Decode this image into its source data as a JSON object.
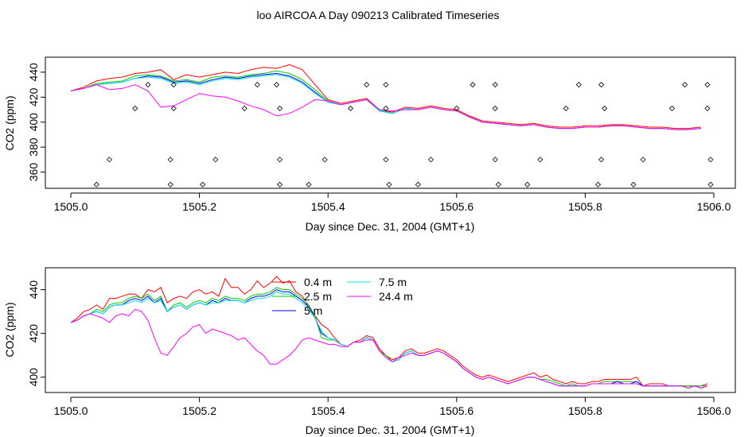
{
  "title": "loo AIRCOA A  Day 090213  Calibrated Timeseries",
  "chart_data": [
    {
      "type": "line",
      "panel": "top",
      "xlabel": "Day since Dec. 31, 2004 (GMT+1)",
      "ylabel": "CO2 (ppm)",
      "xlim": [
        1505.0,
        1506.0
      ],
      "ylim": [
        347,
        452
      ],
      "xticks": [
        "1505.0",
        "1505.2",
        "1505.4",
        "1505.6",
        "1505.8",
        "1506.0"
      ],
      "yticks": [
        "360",
        "380",
        "400",
        "420",
        "440"
      ],
      "x": [
        1505.0,
        1505.02,
        1505.04,
        1505.06,
        1505.08,
        1505.1,
        1505.12,
        1505.14,
        1505.16,
        1505.18,
        1505.2,
        1505.22,
        1505.24,
        1505.26,
        1505.28,
        1505.3,
        1505.32,
        1505.34,
        1505.36,
        1505.38,
        1505.4,
        1505.42,
        1505.44,
        1505.46,
        1505.48,
        1505.5,
        1505.52,
        1505.54,
        1505.56,
        1505.58,
        1505.6,
        1505.62,
        1505.64,
        1505.66,
        1505.68,
        1505.7,
        1505.72,
        1505.74,
        1505.76,
        1505.78,
        1505.8,
        1505.82,
        1505.84,
        1505.86,
        1505.88,
        1505.9,
        1505.92,
        1505.94,
        1505.96,
        1505.98
      ],
      "series": [
        {
          "color": "#ff0000",
          "values": [
            425,
            428,
            433,
            435,
            436,
            439,
            440,
            442,
            434,
            438,
            436,
            438,
            440,
            439,
            442,
            444,
            443,
            446,
            442,
            430,
            418,
            415,
            417,
            419,
            410,
            408,
            412,
            411,
            413,
            411,
            410,
            405,
            401,
            400,
            399,
            398,
            399,
            397,
            396,
            396,
            397,
            397,
            398,
            398,
            397,
            396,
            396,
            395,
            395,
            396
          ]
        },
        {
          "color": "#00cc00",
          "values": [
            425,
            427,
            431,
            432,
            433,
            437,
            438,
            437,
            433,
            434,
            432,
            436,
            437,
            436,
            438,
            439,
            441,
            439,
            434,
            426,
            417,
            414,
            416,
            418,
            410,
            407,
            411,
            410,
            412,
            410,
            409,
            404,
            400,
            399,
            398,
            397,
            398,
            396,
            395,
            395,
            396,
            396,
            397,
            397,
            396,
            395,
            395,
            394,
            394,
            395
          ]
        },
        {
          "color": "#0000ff",
          "values": [
            425,
            427,
            430,
            431,
            432,
            435,
            437,
            436,
            432,
            433,
            431,
            434,
            436,
            435,
            437,
            438,
            439,
            437,
            432,
            424,
            416,
            414,
            416,
            418,
            409,
            407,
            411,
            410,
            412,
            410,
            409,
            404,
            400,
            399,
            398,
            397,
            398,
            396,
            395,
            395,
            396,
            396,
            397,
            397,
            396,
            395,
            395,
            394,
            394,
            395
          ]
        },
        {
          "color": "#00e5e5",
          "values": [
            425,
            427,
            430,
            431,
            432,
            435,
            436,
            435,
            431,
            432,
            430,
            433,
            435,
            434,
            436,
            437,
            438,
            436,
            431,
            423,
            416,
            414,
            416,
            418,
            409,
            407,
            411,
            410,
            412,
            410,
            409,
            404,
            400,
            399,
            398,
            397,
            398,
            396,
            395,
            395,
            396,
            396,
            397,
            397,
            396,
            395,
            395,
            394,
            394,
            395
          ]
        },
        {
          "color": "#ff00ff",
          "values": [
            425,
            427,
            430,
            426,
            427,
            430,
            425,
            412,
            413,
            418,
            423,
            421,
            420,
            417,
            413,
            410,
            405,
            407,
            412,
            418,
            417,
            414,
            416,
            418,
            410,
            409,
            410,
            410,
            412,
            410,
            409,
            404,
            400,
            399,
            398,
            397,
            398,
            396,
            395,
            395,
            396,
            396,
            397,
            397,
            396,
            395,
            395,
            394,
            394,
            395
          ]
        }
      ],
      "flag_points": {
        "x": [
          1505.04,
          1505.06,
          1505.1,
          1505.12,
          1505.155,
          1505.155,
          1505.16,
          1505.16,
          1505.205,
          1505.225,
          1505.27,
          1505.29,
          1505.32,
          1505.325,
          1505.325,
          1505.325,
          1505.37,
          1505.395,
          1505.435,
          1505.46,
          1505.49,
          1505.49,
          1505.49,
          1505.495,
          1505.54,
          1505.56,
          1505.6,
          1505.625,
          1505.66,
          1505.66,
          1505.66,
          1505.665,
          1505.71,
          1505.73,
          1505.77,
          1505.79,
          1505.82,
          1505.825,
          1505.825,
          1505.83,
          1505.875,
          1505.89,
          1505.935,
          1505.955,
          1505.99,
          1505.99,
          1505.995,
          1505.995
        ],
        "y": [
          350,
          370,
          411,
          430,
          350,
          370,
          411,
          430,
          350,
          370,
          411,
          430,
          430,
          411,
          370,
          350,
          350,
          370,
          411,
          430,
          411,
          430,
          370,
          350,
          350,
          370,
          411,
          430,
          430,
          411,
          370,
          350,
          350,
          370,
          411,
          430,
          350,
          370,
          430,
          411,
          350,
          370,
          411,
          430,
          430,
          411,
          370,
          350
        ]
      }
    },
    {
      "type": "line",
      "panel": "bottom",
      "xlabel": "Day since Dec. 31, 2004 (GMT+1)",
      "ylabel": "CO2 (ppm)",
      "xlim": [
        1505.0,
        1506.0
      ],
      "ylim": [
        393,
        450
      ],
      "xticks": [
        "1505.0",
        "1505.2",
        "1505.4",
        "1505.6",
        "1505.8",
        "1506.0"
      ],
      "yticks": [
        "400",
        "420",
        "440"
      ],
      "legend": {
        "placement": "top-center",
        "entries": [
          {
            "label": "0.4 m",
            "color": "#ff0000"
          },
          {
            "label": "2.5 m",
            "color": "#00cc00"
          },
          {
            "label": "5 m",
            "color": "#0000ff"
          },
          {
            "label": "7.5 m",
            "color": "#00e5e5"
          },
          {
            "label": "24.4 m",
            "color": "#ff00ff"
          }
        ]
      },
      "x": [
        1505.0,
        1505.01,
        1505.02,
        1505.03,
        1505.04,
        1505.05,
        1505.06,
        1505.07,
        1505.08,
        1505.09,
        1505.1,
        1505.11,
        1505.12,
        1505.13,
        1505.14,
        1505.15,
        1505.16,
        1505.17,
        1505.18,
        1505.19,
        1505.2,
        1505.21,
        1505.22,
        1505.23,
        1505.24,
        1505.25,
        1505.26,
        1505.27,
        1505.28,
        1505.29,
        1505.3,
        1505.31,
        1505.32,
        1505.33,
        1505.34,
        1505.35,
        1505.36,
        1505.37,
        1505.38,
        1505.39,
        1505.4,
        1505.41,
        1505.42,
        1505.43,
        1505.44,
        1505.45,
        1505.46,
        1505.47,
        1505.48,
        1505.49,
        1505.5,
        1505.51,
        1505.52,
        1505.53,
        1505.54,
        1505.55,
        1505.56,
        1505.57,
        1505.58,
        1505.59,
        1505.6,
        1505.61,
        1505.62,
        1505.63,
        1505.64,
        1505.65,
        1505.66,
        1505.67,
        1505.68,
        1505.69,
        1505.7,
        1505.71,
        1505.72,
        1505.73,
        1505.74,
        1505.75,
        1505.76,
        1505.77,
        1505.78,
        1505.79,
        1505.8,
        1505.81,
        1505.82,
        1505.83,
        1505.84,
        1505.85,
        1505.86,
        1505.87,
        1505.88,
        1505.89,
        1505.9,
        1505.91,
        1505.92,
        1505.93,
        1505.94,
        1505.95,
        1505.96,
        1505.97,
        1505.98,
        1505.99
      ],
      "series": [
        {
          "name": "0.4 m",
          "color": "#ff0000",
          "values": [
            425,
            427,
            430,
            431,
            433,
            431,
            436,
            436,
            437,
            438,
            438,
            436,
            440,
            439,
            441,
            434,
            436,
            437,
            436,
            439,
            440,
            438,
            439,
            437,
            445,
            441,
            441,
            438,
            440,
            444,
            441,
            443,
            446,
            443,
            444,
            439,
            437,
            432,
            428,
            424,
            422,
            418,
            415,
            414,
            416,
            417,
            419,
            418,
            413,
            410,
            408,
            409,
            412,
            413,
            411,
            411,
            412,
            413,
            412,
            410,
            408,
            405,
            403,
            401,
            400,
            401,
            400,
            399,
            398,
            399,
            400,
            401,
            402,
            400,
            401,
            399,
            398,
            397,
            398,
            397,
            397,
            398,
            398,
            399,
            399,
            399,
            399,
            399,
            400,
            396,
            397,
            397,
            397,
            396,
            396,
            396,
            396,
            396,
            396,
            397
          ]
        },
        {
          "name": "2.5 m",
          "color": "#00cc00",
          "values": [
            425,
            426,
            428,
            429,
            431,
            430,
            433,
            434,
            434,
            436,
            437,
            436,
            438,
            435,
            437,
            430,
            433,
            434,
            432,
            434,
            435,
            434,
            436,
            435,
            437,
            436,
            436,
            435,
            437,
            438,
            438,
            439,
            441,
            440,
            440,
            438,
            436,
            433,
            428,
            418,
            417,
            417,
            415,
            414,
            416,
            416,
            418,
            417,
            412,
            410,
            407,
            408,
            411,
            412,
            410,
            410,
            411,
            412,
            411,
            409,
            407,
            404,
            402,
            400,
            399,
            400,
            399,
            398,
            397,
            398,
            399,
            400,
            400,
            399,
            399,
            398,
            397,
            396,
            397,
            396,
            396,
            397,
            397,
            398,
            398,
            398,
            398,
            398,
            398,
            396,
            396,
            396,
            396,
            396,
            396,
            396,
            396,
            396,
            396,
            396
          ]
        },
        {
          "name": "5 m",
          "color": "#0000ff",
          "values": [
            425,
            426,
            428,
            429,
            430,
            429,
            432,
            433,
            433,
            435,
            436,
            435,
            437,
            434,
            436,
            430,
            432,
            433,
            431,
            433,
            434,
            433,
            435,
            434,
            436,
            435,
            435,
            434,
            436,
            437,
            437,
            438,
            440,
            439,
            439,
            437,
            435,
            432,
            427,
            420,
            418,
            417,
            415,
            414,
            416,
            416,
            418,
            417,
            412,
            409,
            407,
            408,
            411,
            412,
            410,
            410,
            411,
            412,
            411,
            409,
            407,
            404,
            402,
            400,
            399,
            400,
            399,
            398,
            397,
            398,
            399,
            400,
            400,
            399,
            398,
            397,
            396,
            396,
            396,
            396,
            396,
            397,
            397,
            397,
            397,
            398,
            397,
            397,
            398,
            396,
            396,
            396,
            396,
            396,
            396,
            396,
            395,
            396,
            395,
            396
          ]
        },
        {
          "name": "7.5 m",
          "color": "#00e5e5",
          "values": [
            425,
            426,
            428,
            429,
            430,
            429,
            432,
            433,
            433,
            434,
            435,
            434,
            436,
            434,
            435,
            430,
            432,
            433,
            431,
            433,
            434,
            433,
            434,
            434,
            435,
            435,
            435,
            434,
            435,
            436,
            436,
            437,
            439,
            438,
            438,
            436,
            434,
            431,
            427,
            421,
            418,
            417,
            415,
            414,
            416,
            416,
            418,
            417,
            412,
            409,
            407,
            408,
            411,
            412,
            410,
            410,
            411,
            412,
            411,
            409,
            407,
            404,
            402,
            400,
            399,
            400,
            399,
            398,
            397,
            398,
            399,
            400,
            400,
            399,
            398,
            397,
            396,
            396,
            396,
            396,
            396,
            397,
            397,
            397,
            397,
            397,
            397,
            397,
            397,
            396,
            396,
            396,
            396,
            396,
            396,
            396,
            395,
            396,
            395,
            396
          ]
        },
        {
          "name": "24.4 m",
          "color": "#ff00ff",
          "values": [
            425,
            426,
            428,
            429,
            428,
            427,
            425,
            428,
            429,
            428,
            431,
            430,
            426,
            418,
            411,
            410,
            414,
            418,
            420,
            423,
            424,
            420,
            422,
            421,
            420,
            419,
            417,
            418,
            415,
            412,
            410,
            406,
            406,
            408,
            410,
            413,
            417,
            418,
            417,
            416,
            415,
            415,
            414,
            414,
            416,
            416,
            417,
            417,
            412,
            409,
            407,
            409,
            410,
            411,
            410,
            410,
            411,
            412,
            411,
            409,
            407,
            404,
            402,
            400,
            399,
            400,
            399,
            398,
            397,
            398,
            399,
            400,
            400,
            399,
            398,
            397,
            396,
            396,
            396,
            396,
            396,
            397,
            397,
            397,
            397,
            397,
            397,
            397,
            397,
            396,
            396,
            396,
            396,
            396,
            396,
            396,
            395,
            396,
            395,
            396
          ]
        }
      ]
    }
  ]
}
